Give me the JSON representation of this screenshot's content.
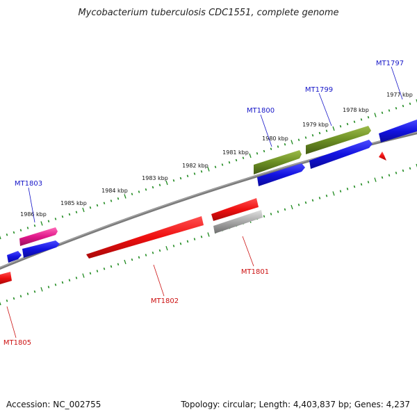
{
  "title": "Mycobacterium tuberculosis CDC1551, complete genome",
  "footer": {
    "accession": "Accession: NC_002755",
    "summary": "Topology: circular; Length: 4,403,837 bp; Genes: 4,237"
  },
  "colors": {
    "background": "#ffffff",
    "backbone": "#7a7a7a",
    "tick_dot": "#1f8a1f",
    "tick_major": "#1f8a1f",
    "label_forward": "#1515c8",
    "label_reverse": "#cc1111",
    "cds_forward": "#1212e0",
    "cds_reverse": "#ee0f0f",
    "olive": "#6b8e23",
    "pink": "#e0188a",
    "gray_gene": "#a8a8a8"
  },
  "scale_labels": [
    "1977 kbp",
    "1978 kbp",
    "1979 kbp",
    "1980 kbp",
    "1981 kbp",
    "1982 kbp",
    "1983 kbp",
    "1984 kbp",
    "1985 kbp",
    "1986 kbp"
  ],
  "gene_labels": [
    {
      "text": "MT1797",
      "strand": "forward"
    },
    {
      "text": "MT1799",
      "strand": "forward"
    },
    {
      "text": "MT1800",
      "strand": "forward"
    },
    {
      "text": "MT1803",
      "strand": "forward"
    },
    {
      "text": "MT1801",
      "strand": "reverse"
    },
    {
      "text": "MT1802",
      "strand": "reverse"
    },
    {
      "text": "MT1805",
      "strand": "reverse"
    }
  ]
}
